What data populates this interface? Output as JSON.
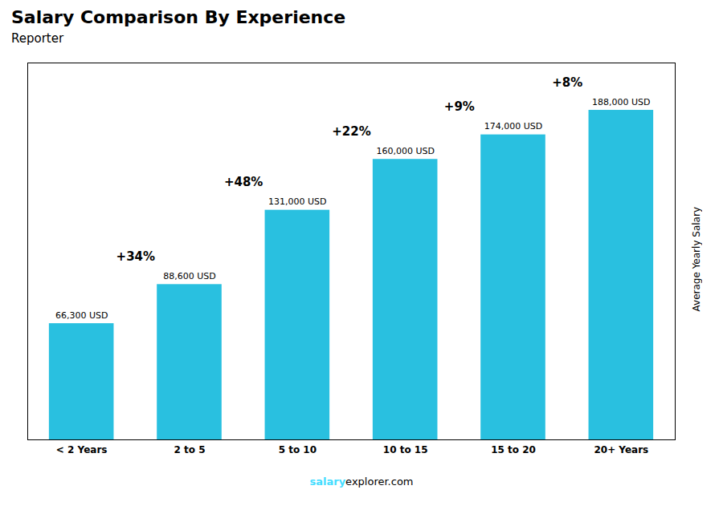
{
  "chart_data": {
    "type": "bar",
    "title": "Salary Comparison By Experience",
    "subtitle": "Reporter",
    "ylabel": "Average Yearly Salary",
    "categories": [
      "< 2 Years",
      "2 to 5",
      "5 to 10",
      "10 to 15",
      "15 to 20",
      "20+ Years"
    ],
    "values": [
      66300,
      88600,
      131000,
      160000,
      174000,
      188000
    ],
    "value_labels": [
      "66,300 USD",
      "88,600 USD",
      "131,000 USD",
      "160,000 USD",
      "174,000 USD",
      "188,000 USD"
    ],
    "data_labels": true,
    "color": "#29C0E0",
    "ylim": [
      0,
      215000
    ],
    "yticks": [],
    "tick_labels": "x",
    "grid": false,
    "annotations": [
      {
        "text": "+34%",
        "from": "< 2 Years",
        "to": "2 to 5"
      },
      {
        "text": "+48%",
        "from": "2 to 5",
        "to": "5 to 10"
      },
      {
        "text": "+22%",
        "from": "5 to 10",
        "to": "10 to 15"
      },
      {
        "text": "+9%",
        "from": "10 to 15",
        "to": "15 to 20"
      },
      {
        "text": "+8%",
        "from": "15 to 20",
        "to": "20+ Years"
      }
    ],
    "footer": [
      {
        "text": "salary",
        "color": "#44DDFF"
      },
      {
        "text": "explorer.com"
      }
    ]
  }
}
